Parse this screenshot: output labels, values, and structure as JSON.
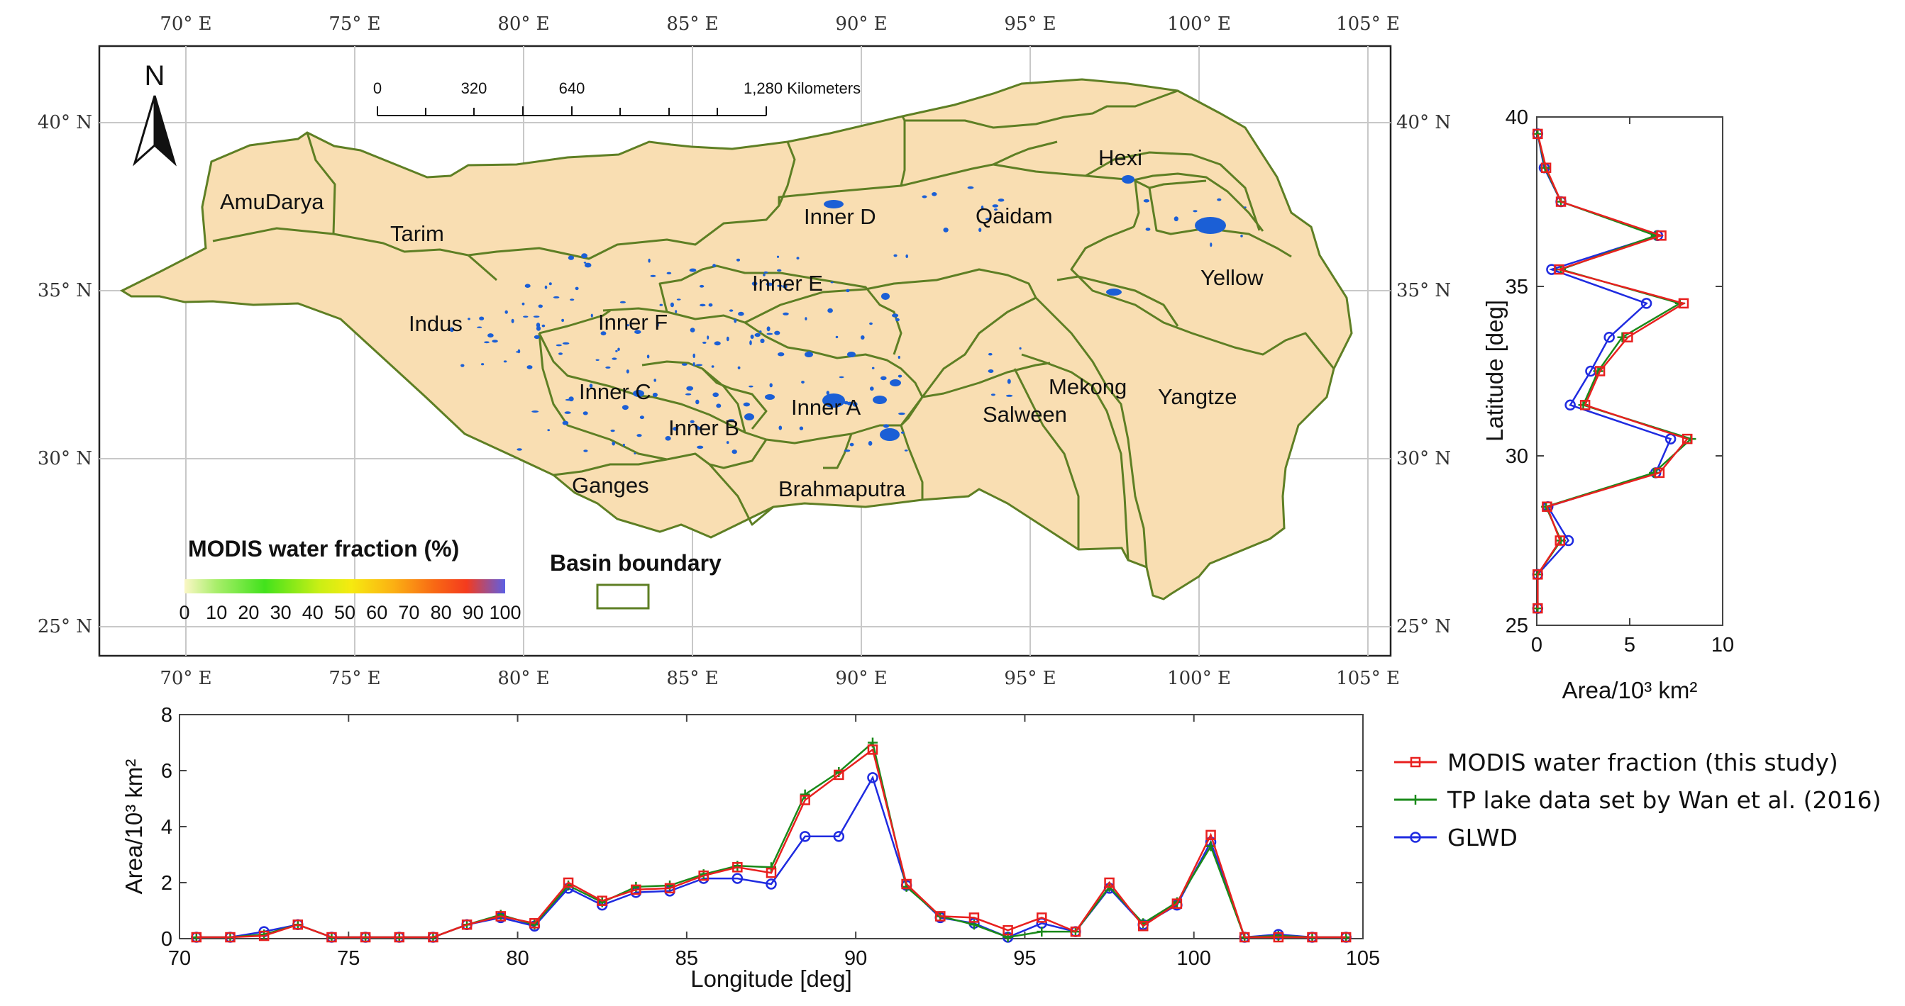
{
  "map": {
    "top_lon_labels": [
      "70° E",
      "75° E",
      "80° E",
      "85° E",
      "90° E",
      "95° E",
      "100° E",
      "105° E"
    ],
    "bottom_lon_labels": [
      "70° E",
      "75° E",
      "80° E",
      "85° E",
      "90° E",
      "95° E",
      "100° E",
      "105° E"
    ],
    "left_lat_labels": [
      "40° N",
      "35° N",
      "30° N",
      "25° N"
    ],
    "right_lat_labels": [
      "40° N",
      "35° N",
      "30° N",
      "25° N"
    ],
    "north_arrow_label": "N",
    "scale_bar": {
      "ticks": [
        "0",
        "320",
        "640",
        "1,280 Kilometers"
      ]
    },
    "regions": [
      "AmuDarya",
      "Tarim",
      "Hexi",
      "Qaidam",
      "Inner D",
      "Inner E",
      "Yellow",
      "Indus",
      "Inner F",
      "Mekong",
      "Inner C",
      "Inner A",
      "Yangtze",
      "Inner B",
      "Salween",
      "Ganges",
      "Brahmaputra"
    ],
    "colorbar": {
      "title": "MODIS water fraction (%)",
      "ticks": [
        "0",
        "10",
        "20",
        "30",
        "40",
        "50",
        "60",
        "70",
        "80",
        "90",
        "100"
      ]
    },
    "basin_legend": "Basin boundary",
    "colors": {
      "basin_fill": "#f9deb2",
      "basin_stroke": "#5e7f24",
      "lake": "#1b5fd6",
      "grid": "#c8c8c8"
    }
  },
  "chart_data": [
    {
      "type": "line",
      "name": "longitude-profile",
      "xlabel": "Longitude [deg]",
      "ylabel": "Area/10³ km²",
      "xlim": [
        70,
        105
      ],
      "ylim": [
        0,
        8
      ],
      "xticks": [
        70,
        75,
        80,
        85,
        90,
        95,
        100,
        105
      ],
      "yticks": [
        0,
        2,
        4,
        6,
        8
      ],
      "x": [
        70.5,
        71.5,
        72.5,
        73.5,
        74.5,
        75.5,
        76.5,
        77.5,
        78.5,
        79.5,
        80.5,
        81.5,
        82.5,
        83.5,
        84.5,
        85.5,
        86.5,
        87.5,
        88.5,
        89.5,
        90.5,
        91.5,
        92.5,
        93.5,
        94.5,
        95.5,
        96.5,
        97.5,
        98.5,
        99.5,
        100.5,
        101.5,
        102.5,
        103.5,
        104.5
      ],
      "series": [
        {
          "name": "MODIS water fraction (this study)",
          "color": "#e8201f",
          "marker": "square",
          "values": [
            0.05,
            0.05,
            0.1,
            0.5,
            0.05,
            0.05,
            0.05,
            0.05,
            0.5,
            0.8,
            0.55,
            2.0,
            1.35,
            1.75,
            1.8,
            2.25,
            2.55,
            2.35,
            4.95,
            5.85,
            6.75,
            1.95,
            0.8,
            0.75,
            0.3,
            0.75,
            0.25,
            2.0,
            0.45,
            1.25,
            3.7,
            0.05,
            0.05,
            0.05,
            0.05
          ]
        },
        {
          "name": "TP lake data set by Wan et al. (2016)",
          "color": "#1a8a1a",
          "marker": "plus",
          "values": [
            0.05,
            0.05,
            0.15,
            0.5,
            0.05,
            0.05,
            0.05,
            0.05,
            0.5,
            0.85,
            0.5,
            1.9,
            1.3,
            1.85,
            1.9,
            2.3,
            2.6,
            2.55,
            5.15,
            5.95,
            7.0,
            1.85,
            0.8,
            0.5,
            0.05,
            0.25,
            0.25,
            1.85,
            0.55,
            1.3,
            3.3,
            0.05,
            0.1,
            0.05,
            0.05
          ]
        },
        {
          "name": "GLWD",
          "color": "#1f2be0",
          "marker": "circle",
          "values": [
            0.05,
            0.05,
            0.25,
            0.5,
            0.05,
            0.05,
            0.05,
            0.05,
            0.5,
            0.75,
            0.45,
            1.8,
            1.2,
            1.65,
            1.7,
            2.15,
            2.15,
            1.95,
            3.65,
            3.65,
            5.75,
            1.9,
            0.75,
            0.55,
            0.05,
            0.55,
            0.25,
            1.8,
            0.5,
            1.2,
            3.45,
            0.05,
            0.15,
            0.05,
            0.05
          ]
        }
      ]
    },
    {
      "type": "line",
      "name": "latitude-profile",
      "xlabel": "Area/10³ km²",
      "ylabel": "Latitude [deg]",
      "xlim": [
        0,
        10
      ],
      "ylim": [
        25,
        40
      ],
      "xticks": [
        0,
        5,
        10
      ],
      "yticks": [
        25,
        30,
        35,
        40
      ],
      "y": [
        39.5,
        38.5,
        37.5,
        36.5,
        35.5,
        34.5,
        33.5,
        32.5,
        31.5,
        30.5,
        29.5,
        28.5,
        27.5,
        26.5,
        25.5
      ],
      "series": [
        {
          "name": "MODIS water fraction (this study)",
          "color": "#e8201f",
          "marker": "square",
          "values": [
            0.05,
            0.5,
            1.3,
            6.7,
            1.2,
            7.9,
            4.9,
            3.4,
            2.6,
            8.1,
            6.6,
            0.55,
            1.25,
            0.05,
            0.05
          ]
        },
        {
          "name": "TP lake data set by Wan et al. (2016)",
          "color": "#1a8a1a",
          "marker": "plus",
          "values": [
            0.05,
            0.45,
            1.3,
            6.4,
            1.3,
            7.7,
            4.6,
            3.3,
            2.5,
            8.3,
            6.3,
            0.5,
            1.3,
            0.05,
            0.05
          ]
        },
        {
          "name": "GLWD",
          "color": "#1f2be0",
          "marker": "circle",
          "values": [
            0.05,
            0.4,
            1.3,
            6.5,
            0.8,
            5.9,
            3.9,
            2.9,
            1.8,
            7.2,
            6.4,
            0.6,
            1.7,
            0.05,
            0.05
          ]
        }
      ]
    }
  ]
}
